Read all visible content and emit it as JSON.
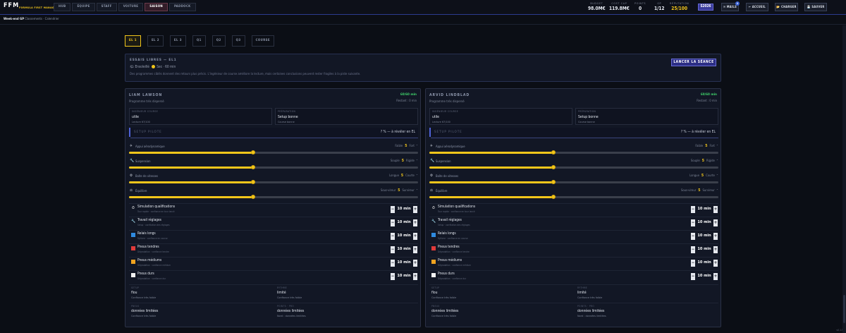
{
  "app": {
    "logo": "FFM",
    "logo_sub": "FORMULA FIRST MANAGER",
    "version": "v0.1.5"
  },
  "nav": [
    "HUB",
    "ÉQUIPE",
    "STAFF",
    "VOITURE",
    "SAISON",
    "PADDOCK"
  ],
  "nav_active": "SAISON",
  "stats": [
    {
      "label": "BUDGET",
      "value": "98.0M€"
    },
    {
      "label": "COST CAP",
      "value": "119.8M€"
    },
    {
      "label": "POINTS",
      "value": "0"
    },
    {
      "label": "GP",
      "value": "1/12"
    },
    {
      "label": "RÉPUTATION",
      "value": "25/100"
    }
  ],
  "year_badge": "S2026",
  "topbar_buttons": {
    "mails": "✉ MAILS",
    "mail_count": "4",
    "home": "← ACCUEIL",
    "load": "📂 CHARGER",
    "save": "💾 SAUVER"
  },
  "breadcrumb": {
    "current": "Week-end GP",
    "links": "Classements · Calendrier"
  },
  "session_tabs": [
    "EL 1",
    "EL 2",
    "EL 3",
    "Q1",
    "Q2",
    "Q3",
    "COURSE"
  ],
  "session_tab_active": "EL 1",
  "session": {
    "title": "ESSAIS LIBRES — EL1",
    "weather": "🌤 Ensoleillé",
    "temp": "Sec · 60 min",
    "desc": "Des programmes ciblés donnent des retours plus précis. L'ingénieur de course améliore la lecture, mais certaines conclusions peuvent rester fragiles à la piste suivante.",
    "launch": "LANCER LA SÉANCE"
  },
  "labels": {
    "engineer": "INGÉNIEUR COURSE",
    "setup_cur": "PRÉPARATION",
    "pilot_setup": "SETUP PILOTE",
    "pilot_setup_value": "? % — à révéler en EL",
    "min_unit": "min"
  },
  "sliders": [
    {
      "icon": "✈",
      "name": "Appui aérodynamique",
      "left": "Faible",
      "right": "Fort",
      "value": "5",
      "level_pct": 43
    },
    {
      "icon": "🔧",
      "name": "Suspension",
      "left": "Souple",
      "right": "Rigide",
      "value": "5",
      "level_pct": 43
    },
    {
      "icon": "⚙",
      "name": "Boîte de vitesses",
      "left": "Longue",
      "right": "Courte",
      "value": "5",
      "level_pct": 43
    },
    {
      "icon": "⚖",
      "name": "Équilibre",
      "left": "Sous-vireur",
      "right": "Survireur",
      "value": "5",
      "level_pct": 43
    }
  ],
  "programs": [
    {
      "icon": "⏱",
      "name": "Simulation qualifications",
      "sub": "Tour rapide · confiance en tour lancé",
      "minutes": "10",
      "color": "#ffffff"
    },
    {
      "icon": "🔧",
      "name": "Travail réglages",
      "sub": "Setup · corrélation des réglages",
      "minutes": "10",
      "color": "#c8ccd6"
    },
    {
      "icon": "■",
      "name": "Relais longs",
      "sub": "Rythme · confiance en course",
      "minutes": "10",
      "color": "#2f8be0"
    },
    {
      "icon": "■",
      "name": "Pneus tendres",
      "sub": "Dégradation · confiance tendre",
      "minutes": "10",
      "color": "#e03a3a"
    },
    {
      "icon": "■",
      "name": "Pneus médiums",
      "sub": "Dégradation · confiance médium",
      "minutes": "10",
      "color": "#f0a31f"
    },
    {
      "icon": "■",
      "name": "Pneus durs",
      "sub": "Dégradation · confiance dur",
      "minutes": "10",
      "color": "#f2f2f2"
    }
  ],
  "drivers": [
    {
      "name": "LIAM LAWSON",
      "program": "Programme très dispersé",
      "minutes": "60/60 min",
      "rest": "Restant : 0 min",
      "engineer_value": "utile",
      "engineer_sub": "Lecture 67/100",
      "setup_value": "Setup bonne",
      "setup_sub": "Course bonne",
      "feedback": [
        {
          "label": "SETUP",
          "value": "flou",
          "sub": "Confiance très faible"
        },
        {
          "label": "RYTHME",
          "value": "limité",
          "sub": "Confiance très faible"
        },
        {
          "label": "PNEUS",
          "value": "données limitées",
          "sub": "Confiance très faible"
        },
        {
          "label": "POINTS · PRO",
          "value": "données limitées",
          "sub": "Nord : données limitées"
        }
      ]
    },
    {
      "name": "ARVID LINDBLAD",
      "program": "Programme très dispersé",
      "minutes": "60/60 min",
      "rest": "Restant : 0 min",
      "engineer_value": "utile",
      "engineer_sub": "Lecture 67/100",
      "setup_value": "Setup bonne",
      "setup_sub": "Course bonne",
      "feedback": [
        {
          "label": "SETUP",
          "value": "flou",
          "sub": "Confiance très faible"
        },
        {
          "label": "RYTHME",
          "value": "limité",
          "sub": "Confiance très faible"
        },
        {
          "label": "PNEUS",
          "value": "données limitées",
          "sub": "Confiance très faible"
        },
        {
          "label": "POINTS · PRO",
          "value": "données limitées",
          "sub": "Nord : données limitées"
        }
      ]
    }
  ]
}
